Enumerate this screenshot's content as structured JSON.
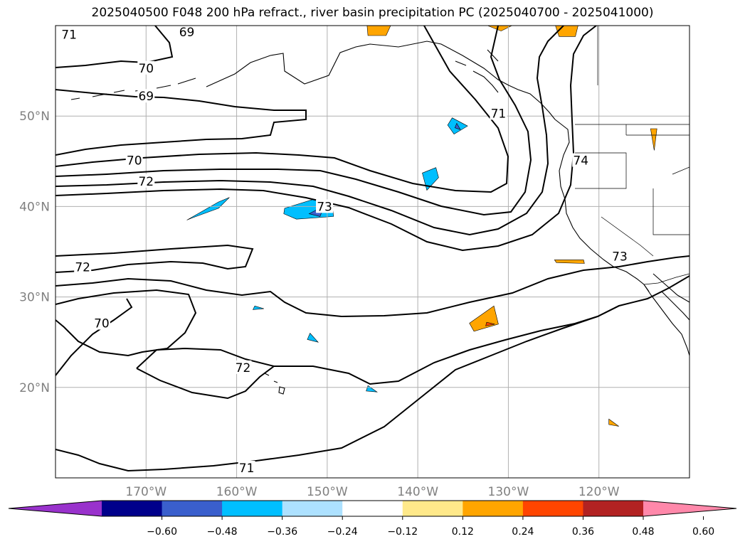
{
  "title": "2025040500 F048 200 hPa refract., river basin precipitation PC (2025040700 - 2025041000)",
  "map": {
    "lon_range": [
      -180,
      -110
    ],
    "lat_range": [
      10,
      60
    ],
    "lat_ticks": [
      {
        "value": 50,
        "label": "50°N"
      },
      {
        "value": 40,
        "label": "40°N"
      },
      {
        "value": 30,
        "label": "30°N"
      },
      {
        "value": 20,
        "label": "20°N"
      }
    ],
    "lon_ticks": [
      {
        "value": -170,
        "label": "170°W"
      },
      {
        "value": -160,
        "label": "160°W"
      },
      {
        "value": -150,
        "label": "150°W"
      },
      {
        "value": -140,
        "label": "140°W"
      },
      {
        "value": -130,
        "label": "130°W"
      },
      {
        "value": -120,
        "label": "120°W"
      }
    ],
    "grid": true,
    "contour_labels": [
      {
        "text": "71",
        "lon": -178.5,
        "lat": 59
      },
      {
        "text": "70",
        "lon": -170,
        "lat": 55.3
      },
      {
        "text": "69",
        "lon": -165.5,
        "lat": 59.3
      },
      {
        "text": "69",
        "lon": -170,
        "lat": 52.2
      },
      {
        "text": "70",
        "lon": -171.3,
        "lat": 45.1
      },
      {
        "text": "72",
        "lon": -170,
        "lat": 42.8
      },
      {
        "text": "73",
        "lon": -150.3,
        "lat": 40
      },
      {
        "text": "71",
        "lon": -131.1,
        "lat": 50.3
      },
      {
        "text": "74",
        "lon": -122,
        "lat": 45.1
      },
      {
        "text": "72",
        "lon": -177,
        "lat": 33.3
      },
      {
        "text": "73",
        "lon": -117.7,
        "lat": 34.5
      },
      {
        "text": "70",
        "lon": -174.9,
        "lat": 27.1
      },
      {
        "text": "72",
        "lon": -159.3,
        "lat": 22.2
      },
      {
        "text": "71",
        "lon": -158.9,
        "lat": 11.1
      }
    ],
    "shaded_regions": [
      {
        "band": "-0.24",
        "color": "#00BFFF",
        "points": [
          [
            -165.5,
            38.5
          ],
          [
            -162,
            40.5
          ],
          [
            -160.8,
            41
          ],
          [
            -162,
            39.8
          ],
          [
            -165,
            38.7
          ]
        ]
      },
      {
        "band": "-0.24",
        "color": "#00BFFF",
        "points": [
          [
            -154.7,
            39.8
          ],
          [
            -151.5,
            40.8
          ],
          [
            -149.5,
            40.5
          ],
          [
            -149.3,
            38.9
          ],
          [
            -153.4,
            38.6
          ],
          [
            -154.8,
            39.2
          ]
        ]
      },
      {
        "band": "-0.36",
        "color": "#3A5FCD",
        "points": [
          [
            -152,
            39.2
          ],
          [
            -150.3,
            40.1
          ],
          [
            -150.8,
            38.9
          ]
        ]
      },
      {
        "band": "-0.24",
        "color": "#00BFFF",
        "points": [
          [
            -139.5,
            43.7
          ],
          [
            -138,
            44.3
          ],
          [
            -137.7,
            43.2
          ],
          [
            -139,
            41.8
          ]
        ]
      },
      {
        "band": "-0.24",
        "color": "#00BFFF",
        "points": [
          [
            -136.2,
            49.8
          ],
          [
            -134.5,
            48.9
          ],
          [
            -136,
            48
          ],
          [
            -136.7,
            49
          ]
        ]
      },
      {
        "band": "-0.36",
        "color": "#3A5FCD",
        "points": [
          [
            -135.7,
            49.2
          ],
          [
            -135.3,
            48.5
          ],
          [
            -135.9,
            48.7
          ]
        ]
      },
      {
        "band": "-0.24",
        "color": "#00BFFF",
        "points": [
          [
            -151.9,
            26
          ],
          [
            -151,
            25
          ],
          [
            -152.2,
            25.3
          ]
        ]
      },
      {
        "band": "-0.24",
        "color": "#00BFFF",
        "points": [
          [
            -145.5,
            20.2
          ],
          [
            -144.5,
            19.5
          ],
          [
            -145.7,
            19.6
          ]
        ]
      },
      {
        "band": "-0.24",
        "color": "#00BFFF",
        "points": [
          [
            -158,
            29
          ],
          [
            -157,
            28.7
          ],
          [
            -158.2,
            28.6
          ]
        ]
      },
      {
        "band": "0.24",
        "color": "#FFA500",
        "points": [
          [
            -134.3,
            27.1
          ],
          [
            -131.6,
            29
          ],
          [
            -131.1,
            27
          ],
          [
            -133.8,
            26.2
          ]
        ]
      },
      {
        "band": "0.36",
        "color": "#FF4500",
        "points": [
          [
            -132.4,
            27.2
          ],
          [
            -131.5,
            27
          ],
          [
            -132.5,
            26.8
          ]
        ]
      },
      {
        "band": "0.24",
        "color": "#FFA500",
        "points": [
          [
            -118.9,
            16.5
          ],
          [
            -117.8,
            15.7
          ],
          [
            -118.9,
            15.9
          ]
        ]
      },
      {
        "band": "0.24",
        "color": "#FFA500",
        "points": [
          [
            -124.9,
            34.1
          ],
          [
            -121.7,
            34.1
          ],
          [
            -121.6,
            33.7
          ],
          [
            -124.7,
            33.8
          ]
        ]
      },
      {
        "band": "0.24",
        "color": "#FFA500",
        "points": [
          [
            -145.6,
            60
          ],
          [
            -143,
            60
          ],
          [
            -143.5,
            58.9
          ],
          [
            -145.5,
            58.9
          ]
        ]
      },
      {
        "band": "0.24",
        "color": "#FFA500",
        "points": [
          [
            -124.8,
            60
          ],
          [
            -122.3,
            60
          ],
          [
            -122.6,
            58.8
          ],
          [
            -124.4,
            58.8
          ]
        ]
      },
      {
        "band": "0.24",
        "color": "#FFA500",
        "points": [
          [
            -132.3,
            60
          ],
          [
            -129.6,
            60
          ],
          [
            -130.8,
            59.4
          ]
        ]
      },
      {
        "band": "0.24",
        "color": "#FFA500",
        "points": [
          [
            -114.3,
            48.6
          ],
          [
            -113.6,
            48.6
          ],
          [
            -113.9,
            46.2
          ]
        ]
      }
    ],
    "colorbar": {
      "ticks": [
        "−0.60",
        "−0.48",
        "−0.36",
        "−0.24",
        "−0.12",
        "0.12",
        "0.24",
        "0.36",
        "0.48",
        "0.60"
      ],
      "colors": [
        "#9932CC",
        "#00008B",
        "#3A5FCD",
        "#00BFFF",
        "#ADE1FF",
        "#FFFFFF",
        "#FFE98A",
        "#FFA500",
        "#FF4500",
        "#B22222",
        "#FF88AA"
      ]
    }
  }
}
